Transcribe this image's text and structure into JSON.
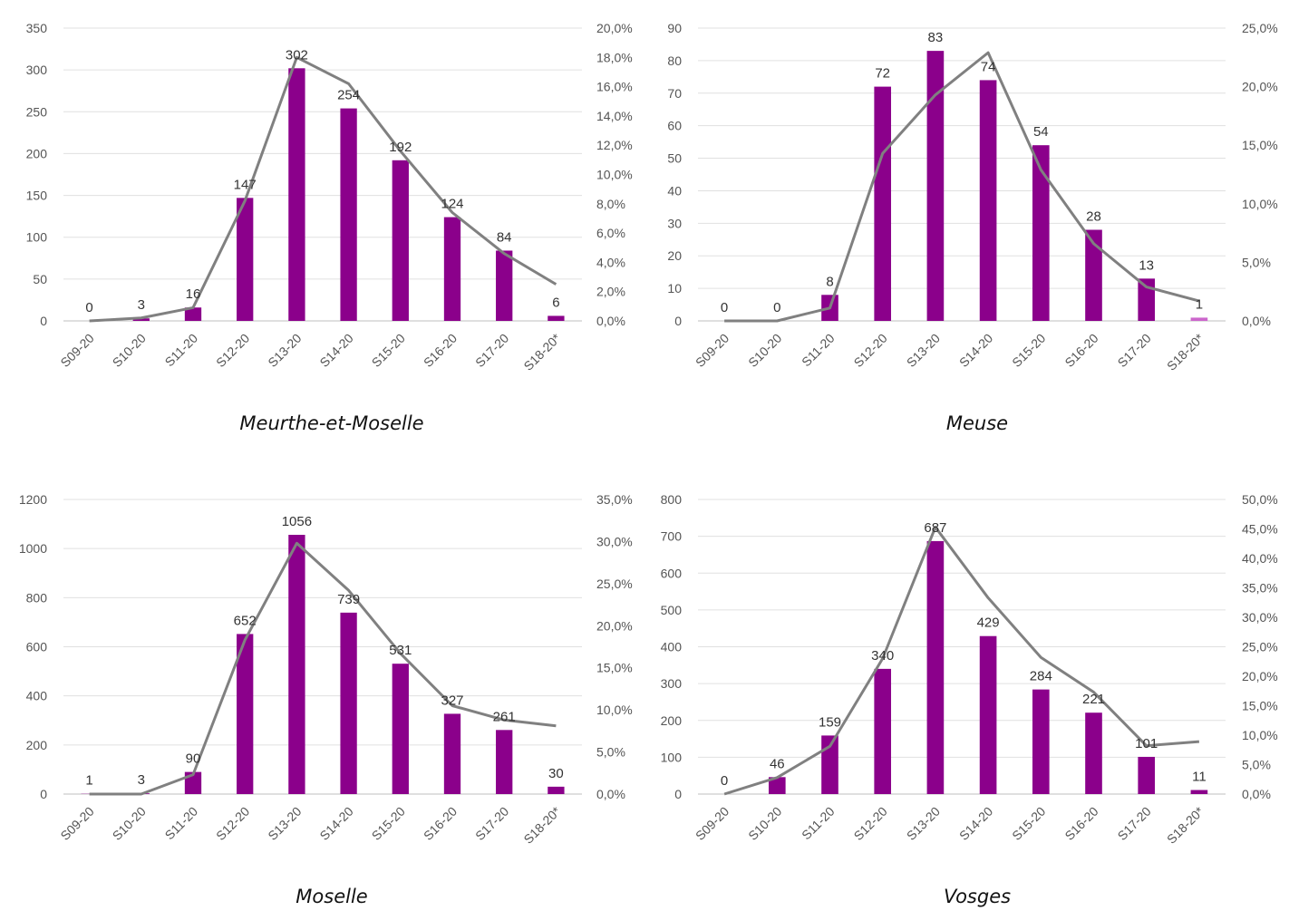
{
  "chart_data": [
    {
      "type": "bar",
      "title": "",
      "caption": "Meurthe-et-Moselle",
      "categories": [
        "S09-20",
        "S10-20",
        "S11-20",
        "S12-20",
        "S13-20",
        "S14-20",
        "S15-20",
        "S16-20",
        "S17-20",
        "S18-20*"
      ],
      "series": [
        {
          "type": "bar",
          "values": [
            0,
            3,
            16,
            147,
            302,
            254,
            192,
            124,
            84,
            6
          ],
          "color": "#8B008B"
        },
        {
          "type": "line",
          "axis": "right",
          "values": [
            0.0,
            0.2,
            0.9,
            8.2,
            18.0,
            16.2,
            11.6,
            7.4,
            4.6,
            2.5
          ],
          "color": "#808080"
        }
      ],
      "ylim": [
        0,
        350
      ],
      "yticks": [
        "0",
        "50",
        "100",
        "150",
        "200",
        "250",
        "300",
        "350"
      ],
      "y2lim": [
        0,
        20
      ],
      "y2ticks": [
        "0,0%",
        "2,0%",
        "4,0%",
        "6,0%",
        "8,0%",
        "10,0%",
        "12,0%",
        "14,0%",
        "16,0%",
        "18,0%",
        "20,0%"
      ],
      "grid": true
    },
    {
      "type": "bar",
      "title": "",
      "caption": "Meuse",
      "categories": [
        "S09-20",
        "S10-20",
        "S11-20",
        "S12-20",
        "S13-20",
        "S14-20",
        "S15-20",
        "S16-20",
        "S17-20",
        "S18-20*"
      ],
      "series": [
        {
          "type": "bar",
          "values": [
            0,
            0,
            8,
            72,
            83,
            74,
            54,
            28,
            13,
            1
          ],
          "color": "#8B008B"
        },
        {
          "type": "line",
          "axis": "right",
          "values": [
            0.0,
            0.0,
            1.1,
            14.3,
            19.3,
            22.9,
            12.9,
            6.6,
            2.9,
            1.7
          ],
          "color": "#808080"
        }
      ],
      "ylim": [
        0,
        90
      ],
      "yticks": [
        "0",
        "10",
        "20",
        "30",
        "40",
        "50",
        "60",
        "70",
        "80",
        "90"
      ],
      "y2lim": [
        0,
        25
      ],
      "y2ticks": [
        "0,0%",
        "5,0%",
        "10,0%",
        "15,0%",
        "20,0%",
        "25,0%"
      ],
      "grid": true
    },
    {
      "type": "bar",
      "title": "",
      "caption": "Moselle",
      "categories": [
        "S09-20",
        "S10-20",
        "S11-20",
        "S12-20",
        "S13-20",
        "S14-20",
        "S15-20",
        "S16-20",
        "S17-20",
        "S18-20*"
      ],
      "series": [
        {
          "type": "bar",
          "values": [
            1,
            3,
            90,
            652,
            1056,
            739,
            531,
            327,
            261,
            30
          ],
          "color": "#8B008B"
        },
        {
          "type": "line",
          "axis": "right",
          "values": [
            0.0,
            0.0,
            2.3,
            18.3,
            29.8,
            24.2,
            16.7,
            10.5,
            8.8,
            8.1
          ],
          "color": "#808080"
        }
      ],
      "ylim": [
        0,
        1200
      ],
      "yticks": [
        "0",
        "200",
        "400",
        "600",
        "800",
        "1000",
        "1200"
      ],
      "y2lim": [
        0,
        35
      ],
      "y2ticks": [
        "0,0%",
        "5,0%",
        "10,0%",
        "15,0%",
        "20,0%",
        "25,0%",
        "30,0%",
        "35,0%"
      ],
      "grid": true
    },
    {
      "type": "bar",
      "title": "",
      "caption": "Vosges",
      "categories": [
        "S09-20",
        "S10-20",
        "S11-20",
        "S12-20",
        "S13-20",
        "S14-20",
        "S15-20",
        "S16-20",
        "S17-20",
        "S18-20*"
      ],
      "series": [
        {
          "type": "bar",
          "values": [
            0,
            46,
            159,
            340,
            687,
            429,
            284,
            221,
            101,
            11
          ],
          "color": "#8B008B"
        },
        {
          "type": "line",
          "axis": "right",
          "values": [
            0.0,
            2.8,
            8.1,
            23.0,
            45.3,
            33.3,
            23.2,
            17.3,
            8.2,
            8.9
          ],
          "color": "#808080"
        }
      ],
      "ylim": [
        0,
        800
      ],
      "yticks": [
        "0",
        "100",
        "200",
        "300",
        "400",
        "500",
        "600",
        "700",
        "800"
      ],
      "y2lim": [
        0,
        50
      ],
      "y2ticks": [
        "0,0%",
        "5,0%",
        "10,0%",
        "15,0%",
        "20,0%",
        "25,0%",
        "30,0%",
        "35,0%",
        "40,0%",
        "45,0%",
        "50,0%"
      ],
      "grid": true
    }
  ]
}
